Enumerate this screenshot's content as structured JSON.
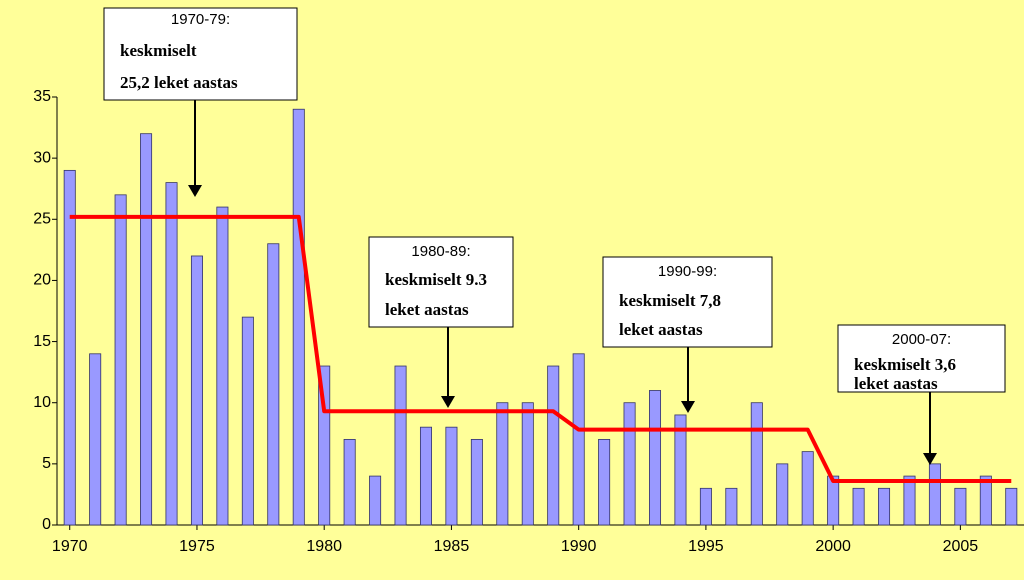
{
  "chart_data": {
    "type": "bar",
    "x": [
      1970,
      1971,
      1972,
      1973,
      1974,
      1975,
      1976,
      1977,
      1978,
      1979,
      1980,
      1981,
      1982,
      1983,
      1984,
      1985,
      1986,
      1987,
      1988,
      1989,
      1990,
      1991,
      1992,
      1993,
      1994,
      1995,
      1996,
      1997,
      1998,
      1999,
      2000,
      2001,
      2002,
      2003,
      2004,
      2005,
      2006,
      2007
    ],
    "series": [
      {
        "color": "#9999ff",
        "values": [
          29,
          14,
          27,
          32,
          28,
          22,
          26,
          17,
          23,
          34,
          13,
          7,
          4,
          13,
          8,
          8,
          7,
          10,
          10,
          13,
          14,
          7,
          10,
          11,
          9,
          3,
          3,
          10,
          5,
          6,
          4,
          3,
          3,
          4,
          5,
          3,
          4,
          3
        ]
      },
      {
        "type": "line",
        "color": "#ff0000",
        "values": [
          25.2,
          25.2,
          25.2,
          25.2,
          25.2,
          25.2,
          25.2,
          25.2,
          25.2,
          25.2,
          9.3,
          9.3,
          9.3,
          9.3,
          9.3,
          9.3,
          9.3,
          9.3,
          9.3,
          9.3,
          7.8,
          7.8,
          7.8,
          7.8,
          7.8,
          7.8,
          7.8,
          7.8,
          7.8,
          7.8,
          3.6,
          3.6,
          3.6,
          3.6,
          3.6,
          3.6,
          3.6,
          3.6
        ]
      }
    ],
    "xlim": [
      1969.5,
      2007.5
    ],
    "xticks": [
      1970,
      1975,
      1980,
      1985,
      1990,
      1995,
      2000,
      2005
    ],
    "ylim": [
      0,
      35
    ],
    "yticks": [
      0,
      5,
      10,
      15,
      20,
      25,
      30,
      35
    ],
    "annotations": [
      {
        "lines": [
          "1970-79:",
          "keskmiselt",
          "25,2 leket aastas"
        ]
      },
      {
        "lines": [
          "1980-89:",
          "keskmiselt 9.3",
          "leket aastas"
        ]
      },
      {
        "lines": [
          "1990-99:",
          "keskmiselt 7,8",
          "leket aastas"
        ]
      },
      {
        "lines": [
          "2000-07:",
          "keskmiselt 3,6",
          "leket aastas"
        ]
      }
    ]
  }
}
